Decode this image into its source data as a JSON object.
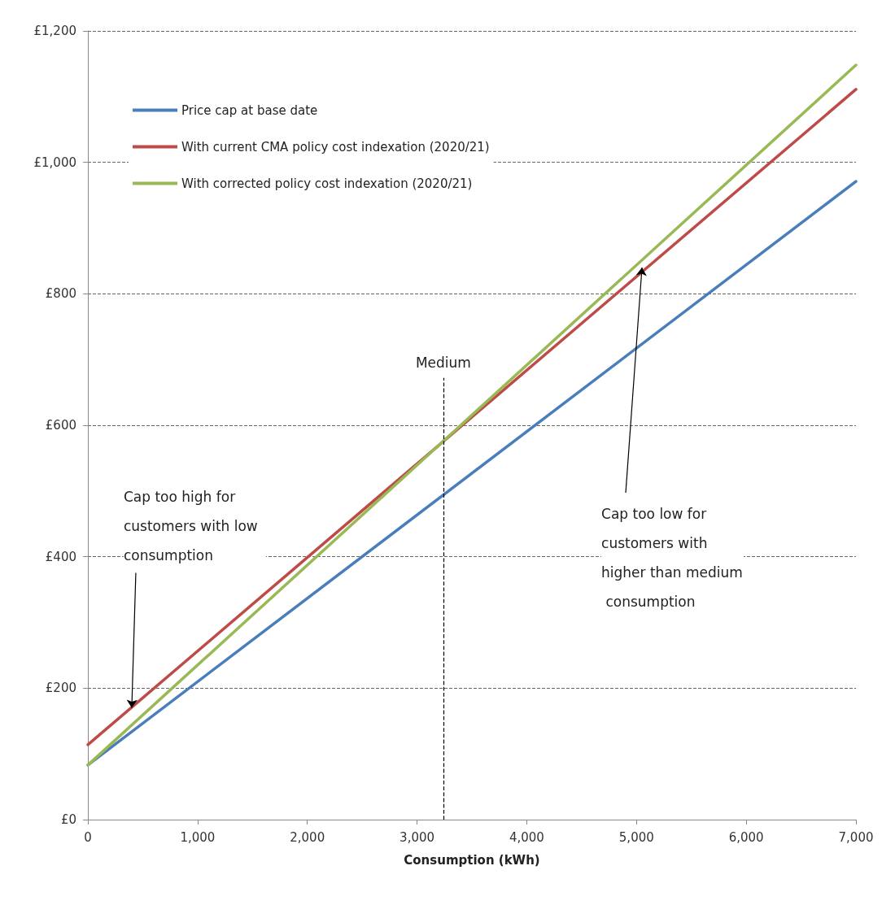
{
  "chart_data": {
    "type": "line",
    "xlabel": "Consumption (kWh)",
    "x": [
      0,
      7000
    ],
    "xlim": [
      0,
      7000
    ],
    "xticks": [
      0,
      {
        "value": 1000,
        "label": "1,000"
      },
      {
        "value": 2000,
        "label": "2,000"
      },
      {
        "value": 3000,
        "label": "3,000"
      },
      {
        "value": 4000,
        "label": "4,000"
      },
      {
        "value": 5000,
        "label": "5,000"
      },
      {
        "value": 6000,
        "label": "6,000"
      },
      {
        "value": 7000,
        "label": "7,000"
      }
    ],
    "ylim": [
      0,
      1200
    ],
    "yticks": [
      {
        "value": 0,
        "label": "£0"
      },
      {
        "value": 200,
        "label": "£200"
      },
      {
        "value": 400,
        "label": "£400"
      },
      {
        "value": 600,
        "label": "£600"
      },
      {
        "value": 800,
        "label": "£800"
      },
      {
        "value": 1000,
        "label": "£1,000"
      },
      {
        "value": 1200,
        "label": "£1,200"
      }
    ],
    "series": [
      {
        "name": "Price cap at base date",
        "color": "#4a7ebb",
        "values": [
          83,
          971
        ]
      },
      {
        "name": "With current CMA policy cost indexation (2020/21)",
        "color": "#be4b48",
        "values": [
          114,
          1111
        ]
      },
      {
        "name": "With corrected policy cost indexation (2020/21)",
        "color": "#98b954",
        "values": [
          83,
          1148
        ]
      }
    ],
    "ref_lines": [
      {
        "axis": "x",
        "value": 3240,
        "label": "Medium",
        "color": "#000000",
        "line_style": "dashed"
      }
    ],
    "annotations": [
      {
        "text": "Cap too high for customers with low consumption",
        "x": 400,
        "y": 170
      },
      {
        "text": "Cap too low for customers with higher than medium consumption",
        "x": 5050,
        "y": 840
      }
    ],
    "grid": "y",
    "legend": "top left",
    "marker": "none",
    "line_style": "solid"
  }
}
